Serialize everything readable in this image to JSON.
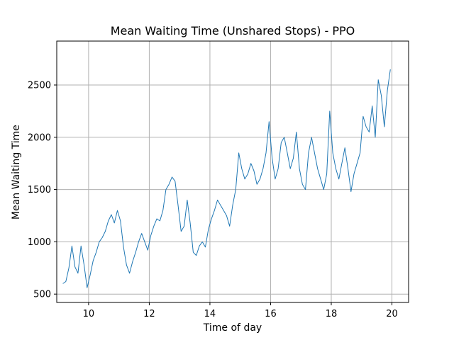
{
  "chart_data": {
    "type": "line",
    "title": "Mean Waiting Time (Unshared Stops) - PPO",
    "xlabel": "Time of day",
    "ylabel": "Mean Waiting Time",
    "xlim": [
      8.95,
      20.55
    ],
    "ylim": [
      420,
      2920
    ],
    "xticks": [
      10,
      12,
      14,
      16,
      18,
      20
    ],
    "yticks": [
      500,
      1000,
      1500,
      2000,
      2500
    ],
    "grid": true,
    "line_color": "#1f77b4",
    "series": [
      {
        "x": [
          9.15,
          9.25,
          9.35,
          9.45,
          9.55,
          9.65,
          9.75,
          9.85,
          9.95,
          10.05,
          10.15,
          10.25,
          10.35,
          10.45,
          10.55,
          10.65,
          10.75,
          10.85,
          10.95,
          11.05,
          11.15,
          11.25,
          11.35,
          11.45,
          11.55,
          11.65,
          11.75,
          11.85,
          11.95,
          12.05,
          12.15,
          12.25,
          12.35,
          12.45,
          12.55,
          12.65,
          12.75,
          12.85,
          12.95,
          13.05,
          13.15,
          13.25,
          13.35,
          13.45,
          13.55,
          13.65,
          13.75,
          13.85,
          13.95,
          14.05,
          14.15,
          14.25,
          14.35,
          14.45,
          14.55,
          14.65,
          14.75,
          14.85,
          14.95,
          15.05,
          15.15,
          15.25,
          15.35,
          15.45,
          15.55,
          15.65,
          15.75,
          15.85,
          15.95,
          16.05,
          16.15,
          16.25,
          16.35,
          16.45,
          16.55,
          16.65,
          16.75,
          16.85,
          16.95,
          17.05,
          17.15,
          17.25,
          17.35,
          17.45,
          17.55,
          17.65,
          17.75,
          17.85,
          17.95,
          18.05,
          18.15,
          18.25,
          18.35,
          18.45,
          18.55,
          18.65,
          18.75,
          18.85,
          18.95,
          19.05,
          19.15,
          19.25,
          19.35,
          19.45,
          19.55,
          19.65,
          19.75,
          19.85,
          19.95
        ],
        "y": [
          600,
          620,
          750,
          960,
          760,
          700,
          960,
          780,
          560,
          680,
          820,
          900,
          1000,
          1040,
          1100,
          1200,
          1260,
          1180,
          1300,
          1200,
          950,
          780,
          700,
          810,
          900,
          1000,
          1080,
          1000,
          920,
          1060,
          1150,
          1220,
          1200,
          1300,
          1500,
          1550,
          1620,
          1580,
          1350,
          1100,
          1150,
          1400,
          1180,
          900,
          870,
          960,
          1000,
          950,
          1120,
          1220,
          1300,
          1400,
          1350,
          1300,
          1250,
          1150,
          1350,
          1500,
          1850,
          1700,
          1600,
          1650,
          1750,
          1680,
          1550,
          1600,
          1700,
          1850,
          2150,
          1800,
          1600,
          1700,
          1950,
          2000,
          1850,
          1700,
          1800,
          2050,
          1700,
          1550,
          1500,
          1850,
          2000,
          1850,
          1700,
          1600,
          1500,
          1650,
          2250,
          1850,
          1700,
          1600,
          1750,
          1900,
          1700,
          1480,
          1650,
          1750,
          1850,
          2200,
          2100,
          2050,
          2300,
          2000,
          2550,
          2400,
          2100,
          2450,
          2650
        ]
      }
    ]
  }
}
